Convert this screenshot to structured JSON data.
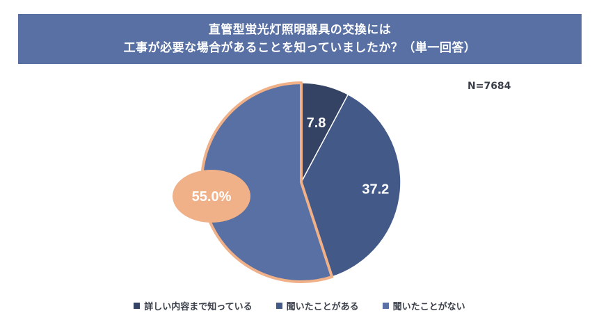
{
  "title": {
    "line1": "直管型蛍光灯照明器具の交換には",
    "line2": "工事が必要な場合があることを知っていましたか？（単一回答）"
  },
  "sample_size": "N=7684",
  "colors": {
    "title_bg": "#5870a3",
    "highlight_border": "#f0b088",
    "highlight_fill": "#f0b088"
  },
  "chart_data": {
    "type": "pie",
    "title": "直管型蛍光灯照明器具の交換には工事が必要な場合があることを知っていましたか？（単一回答）",
    "start": "12 o'clock, clockwise",
    "highlighted_slice": "聞いたことがない",
    "series": [
      {
        "name": "詳しい内容まで知っている",
        "value": 7.8,
        "label": "7.8",
        "color": "#344263"
      },
      {
        "name": "聞いたことがある",
        "value": 37.2,
        "label": "37.2",
        "color": "#435a89"
      },
      {
        "name": "聞いたことがない",
        "value": 55.0,
        "label": "55.0%",
        "color": "#5870a3"
      }
    ]
  }
}
